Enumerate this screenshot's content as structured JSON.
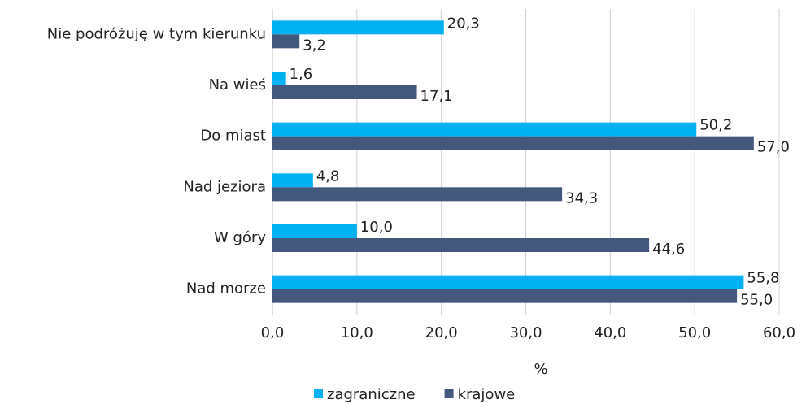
{
  "chart_data": {
    "type": "bar",
    "orientation": "horizontal",
    "categories": [
      "Nie podróżuję w tym kierunku",
      "Na wieś",
      "Do miast",
      "Nad jeziora",
      "W góry",
      "Nad morze"
    ],
    "series": [
      {
        "name": "zagraniczne",
        "color": "#00b0f0",
        "values": [
          20.3,
          1.6,
          50.2,
          4.8,
          10.0,
          55.8
        ],
        "value_labels": [
          "20,3",
          "1,6",
          "50,2",
          "4,8",
          "10,0",
          "55,8"
        ]
      },
      {
        "name": "krajowe",
        "color": "#44587e",
        "values": [
          3.2,
          17.1,
          57.0,
          34.3,
          44.6,
          55.0
        ],
        "value_labels": [
          "3,2",
          "17,1",
          "57,0",
          "34,3",
          "44,6",
          "55,0"
        ]
      }
    ],
    "xlabel": "%",
    "xlim": [
      0,
      60
    ],
    "xticks": [
      {
        "value": 0,
        "label": "0,0"
      },
      {
        "value": 10,
        "label": "10,0"
      },
      {
        "value": 20,
        "label": "20,0"
      },
      {
        "value": 30,
        "label": "30,0"
      },
      {
        "value": 40,
        "label": "40,0"
      },
      {
        "value": 50,
        "label": "50,0"
      },
      {
        "value": 60,
        "label": "60,0"
      }
    ],
    "grid": true,
    "legend": "bottom"
  }
}
